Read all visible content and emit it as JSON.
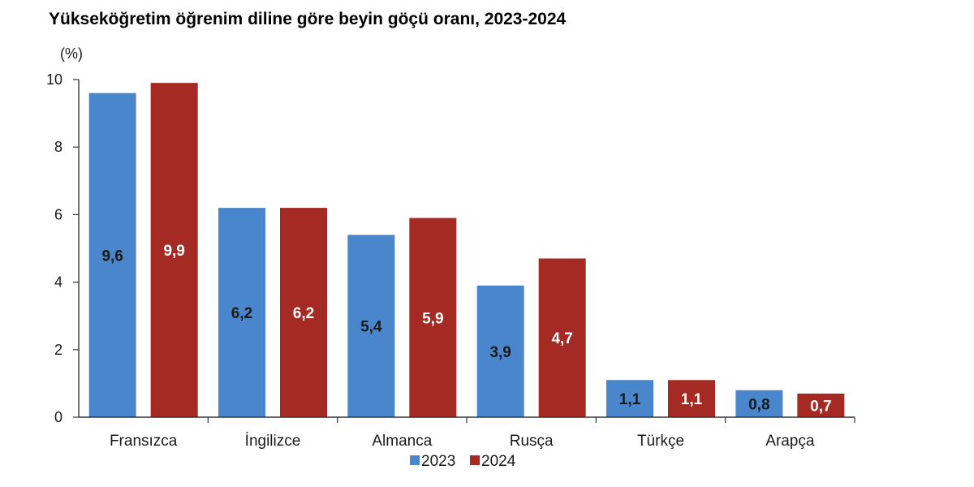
{
  "chart_data": {
    "type": "bar",
    "title": "Yükseköğretim öğrenim diline göre beyin göçü oranı, 2023-2024",
    "ylabel": "(%)",
    "xlabel": "",
    "ylim": [
      0,
      10
    ],
    "yticks": [
      0,
      2,
      4,
      6,
      8,
      10
    ],
    "grid": false,
    "legend_position": "bottom",
    "categories": [
      "Fransızca",
      "İngilizce",
      "Almanca",
      "Rusça",
      "Türkçe",
      "Arapça"
    ],
    "series": [
      {
        "name": "2023",
        "color": "#4a86cc",
        "label_color": "#1a1a1a",
        "values": [
          9.6,
          6.2,
          5.4,
          3.9,
          1.1,
          0.8
        ],
        "labels": [
          "9,6",
          "6,2",
          "5,4",
          "3,9",
          "1,1",
          "0,8"
        ]
      },
      {
        "name": "2024",
        "color": "#a62a24",
        "label_color": "#ffffff",
        "values": [
          9.9,
          6.2,
          5.9,
          4.7,
          1.1,
          0.7
        ],
        "labels": [
          "9,9",
          "6,2",
          "5,9",
          "4,7",
          "1,1",
          "0,7"
        ]
      }
    ]
  }
}
